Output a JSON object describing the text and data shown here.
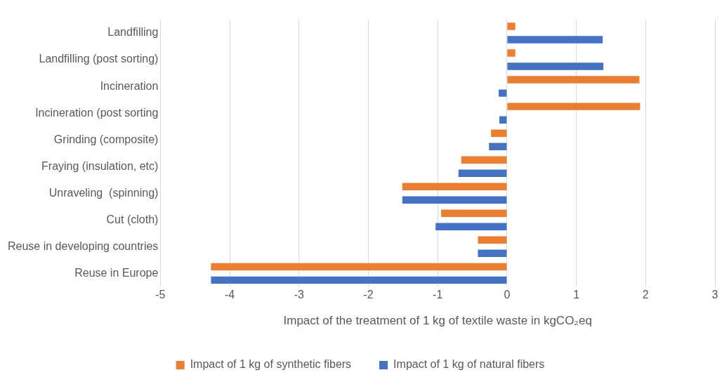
{
  "chart_data": {
    "type": "bar",
    "orientation": "horizontal",
    "categories": [
      "Landfilling",
      "Landfilling (post sorting)",
      "Incineration",
      "Incineration (post sorting",
      "Grinding (composite)",
      "Fraying (insulation, etc)",
      "Unraveling  (spinning)",
      "Cut (cloth)",
      "Reuse in developing countries",
      "Reuse in Europe"
    ],
    "series": [
      {
        "name": "Impact of 1 kg of synthetic fibers",
        "color": "#ed7d31",
        "values": [
          0.12,
          0.12,
          1.91,
          1.92,
          -0.23,
          -0.66,
          -1.51,
          -0.95,
          -0.42,
          -4.27
        ]
      },
      {
        "name": "Impact of 1 kg of natural fibers",
        "color": "#4472c4",
        "values": [
          1.38,
          1.39,
          -0.12,
          -0.11,
          -0.26,
          -0.7,
          -1.51,
          -1.03,
          -0.42,
          -4.27
        ]
      }
    ],
    "xlabel": "Impact of the treatment of 1 kg of textile waste in kgCO₂eq",
    "xlim": [
      -5,
      3
    ],
    "xticks": [
      -5,
      -4,
      -3,
      -2,
      -1,
      0,
      1,
      2,
      3
    ],
    "grid": "x",
    "legend": "bottom"
  }
}
